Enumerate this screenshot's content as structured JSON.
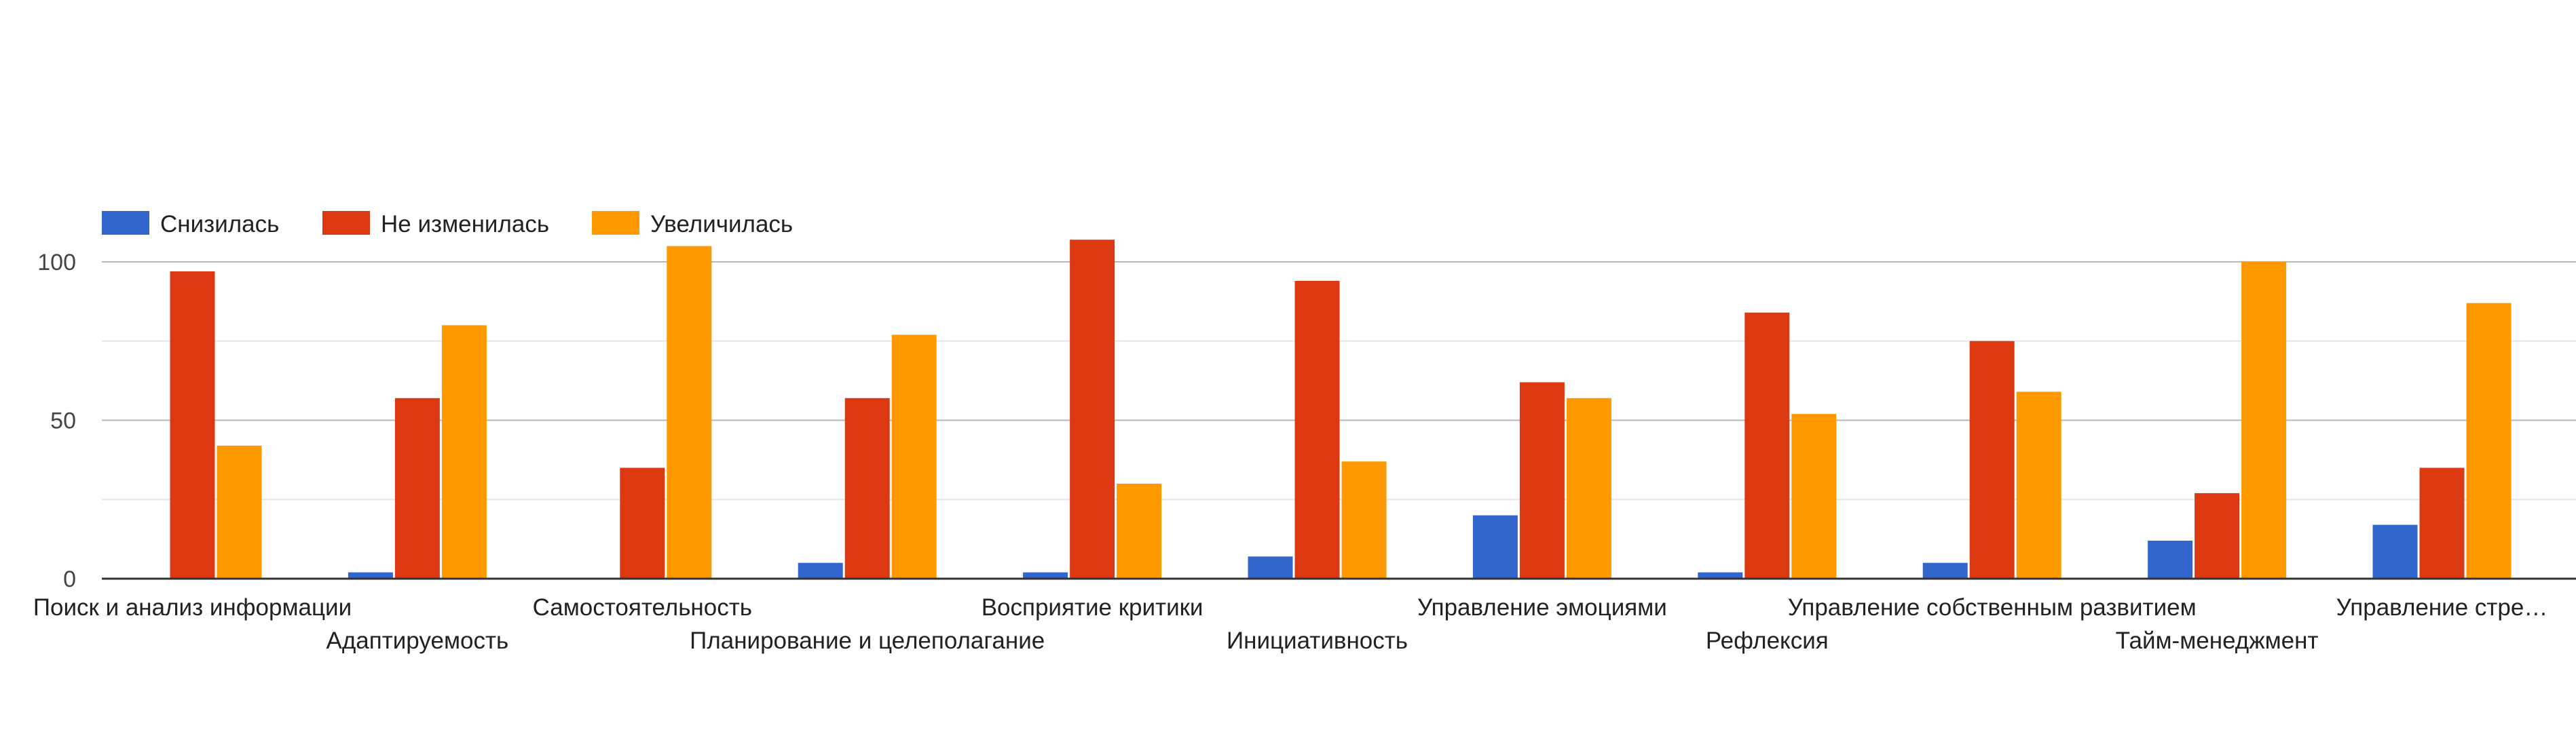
{
  "chart_data": {
    "type": "bar",
    "title": "",
    "xlabel": "",
    "ylabel": "",
    "ylim": [
      0,
      108
    ],
    "yticks": [
      0,
      50,
      100
    ],
    "grid": true,
    "legend_position": "top-left",
    "categories": [
      "Поиск и анализ информации",
      "Адаптируемость",
      "Самостоятельность",
      "Планирование и целеполагание",
      "Восприятие критики",
      "Инициативность",
      "Управление эмоциями",
      "Рефлексия",
      "Управление собственным развитием",
      "Тайм-менеджмент",
      "Управление стре…"
    ],
    "series": [
      {
        "name": "Снизилась",
        "color": "#3366cc",
        "values": [
          0,
          2,
          0,
          5,
          2,
          7,
          20,
          2,
          5,
          12,
          17
        ]
      },
      {
        "name": "Не изменилась",
        "color": "#dc3912",
        "values": [
          97,
          57,
          35,
          57,
          107,
          94,
          62,
          84,
          75,
          27,
          35
        ]
      },
      {
        "name": "Увеличилась",
        "color": "#ff9900",
        "values": [
          42,
          80,
          105,
          77,
          30,
          37,
          57,
          52,
          59,
          100,
          87
        ]
      }
    ]
  }
}
